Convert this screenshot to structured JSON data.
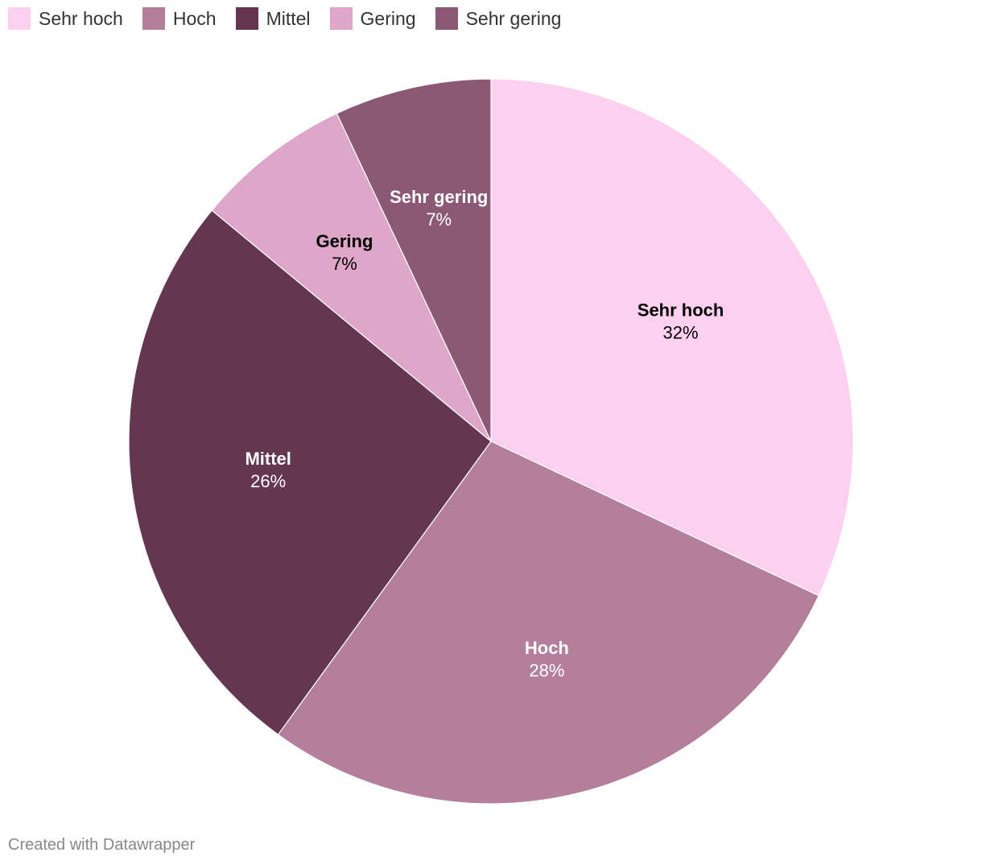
{
  "legend": {
    "items": [
      {
        "label": "Sehr hoch",
        "color": "#fdd0f0"
      },
      {
        "label": "Hoch",
        "color": "#b47e9d"
      },
      {
        "label": "Mittel",
        "color": "#643652"
      },
      {
        "label": "Gering",
        "color": "#dea6c8"
      },
      {
        "label": "Sehr gering",
        "color": "#8b5975"
      }
    ]
  },
  "chart_data": {
    "type": "pie",
    "start_angle": "top",
    "direction": "clockwise",
    "slices": [
      {
        "name": "Sehr hoch",
        "value": 32,
        "value_label": "32%",
        "color": "#fdd0f0",
        "label_color": "#000000"
      },
      {
        "name": "Hoch",
        "value": 28,
        "value_label": "28%",
        "color": "#b47e9d",
        "label_color": "#ffffff"
      },
      {
        "name": "Mittel",
        "value": 26,
        "value_label": "26%",
        "color": "#643652",
        "label_color": "#ffffff"
      },
      {
        "name": "Gering",
        "value": 7,
        "value_label": "7%",
        "color": "#dea6c8",
        "label_color": "#000000"
      },
      {
        "name": "Sehr gering",
        "value": 7,
        "value_label": "7%",
        "color": "#8b5975",
        "label_color": "#ffffff"
      }
    ]
  },
  "footer": {
    "credit": "Created with Datawrapper"
  }
}
